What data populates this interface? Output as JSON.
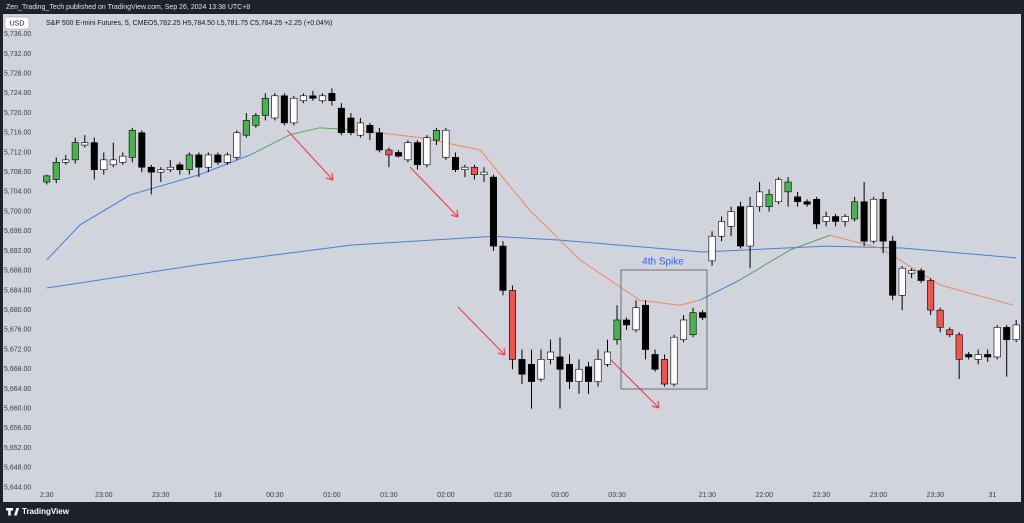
{
  "header": {
    "publisher": "Zen_Trading_Tech published on TradingView.com, Sep 26, 2024 13:38 UTC+8"
  },
  "footer": {
    "brand": "TradingView"
  },
  "chart_data": {
    "type": "candlestick",
    "currency": "USD",
    "symbol": "S&P 500 E-mini Futures, 5, CME",
    "quote": "O5,782.25 H5,784.50 L5,781.75 C5,784.25 +2.25 (+0.04%)",
    "annotations": [
      "4th Spike"
    ],
    "xlim": [
      -0.5,
      102.4
    ],
    "ylim": [
      5643.9,
      5740.1
    ],
    "xticks": [
      {
        "value": 0,
        "label": "2:30"
      },
      {
        "value": 6,
        "label": "23:00"
      },
      {
        "value": 12,
        "label": "23:30"
      },
      18,
      {
        "value": 24,
        "label": "00:30"
      },
      {
        "value": 30,
        "label": "01:00"
      },
      {
        "value": 36,
        "label": "01:30"
      },
      {
        "value": 42,
        "label": "02:00"
      },
      {
        "value": 48,
        "label": "02:30"
      },
      {
        "value": 54,
        "label": "03:00"
      },
      {
        "value": 60,
        "label": "03:30"
      },
      {
        "value": 69.5,
        "label": "21:30"
      },
      {
        "value": 75.5,
        "label": "22:00"
      },
      {
        "value": 81.5,
        "label": "22:30"
      },
      {
        "value": 87.5,
        "label": "23:00"
      },
      {
        "value": 93.5,
        "label": "23:30"
      },
      {
        "value": 99.5,
        "label": "31"
      }
    ],
    "yticks": [
      {
        "value": 5644,
        "label": "5,644.00"
      },
      {
        "value": 5648,
        "label": "5,648.00"
      },
      {
        "value": 5652,
        "label": "5,652.00"
      },
      {
        "value": 5656,
        "label": "5,656.00"
      },
      {
        "value": 5660,
        "label": "5,660.00"
      },
      {
        "value": 5664,
        "label": "5,664.00"
      },
      {
        "value": 5668,
        "label": "5,668.00"
      },
      {
        "value": 5672,
        "label": "5,672.00"
      },
      {
        "value": 5676,
        "label": "5,676.00"
      },
      {
        "value": 5680,
        "label": "5,680.00"
      },
      {
        "value": 5684,
        "label": "5,684.00"
      },
      {
        "value": 5688,
        "label": "5,688.00"
      },
      {
        "value": 5692,
        "label": "5,692.00"
      },
      {
        "value": 5696,
        "label": "5,696.00"
      },
      {
        "value": 5700,
        "label": "5,700.00"
      },
      {
        "value": 5704,
        "label": "5,704.00"
      },
      {
        "value": 5708,
        "label": "5,708.00"
      },
      {
        "value": 5712,
        "label": "5,712.00"
      },
      {
        "value": 5716,
        "label": "5,716.00"
      },
      {
        "value": 5720,
        "label": "5,720.00"
      },
      {
        "value": 5724,
        "label": "5,724.00"
      },
      {
        "value": 5728,
        "label": "5,728.00"
      },
      {
        "value": 5732,
        "label": "5,732.00"
      },
      {
        "value": 5736,
        "label": "5,736.00"
      }
    ],
    "palette": {
      "W": "#ffffff",
      "B": "#000000",
      "G": "#4caf50",
      "R": "#ef5350"
    },
    "styles": [
      "G",
      "G",
      "W",
      "G",
      "W",
      "B",
      "W",
      "W",
      "W",
      "G",
      "B",
      "B",
      "W",
      "W",
      "B",
      "G",
      "B",
      "W",
      "B",
      "W",
      "W",
      "G",
      "G",
      "G",
      "W",
      "B",
      "W",
      "W",
      "B",
      "W",
      "B",
      "B",
      "B",
      "W",
      "B",
      "B",
      "R",
      "B",
      "W",
      "B",
      "W",
      "G",
      "W",
      "B",
      "W",
      "R",
      "W",
      "B",
      "B",
      "R",
      "B",
      "B",
      "W",
      "W",
      "B",
      "B",
      "W",
      "B",
      "W",
      "W",
      "G",
      "B",
      "W",
      "B",
      "B",
      "R",
      "W",
      "W",
      "G",
      "B",
      "W",
      "W",
      "W",
      "B",
      "W",
      "W",
      "G",
      "W",
      "G",
      "B",
      "B",
      "B",
      "W",
      "B",
      "W",
      "G",
      "B",
      "W",
      "B",
      "B",
      "W",
      "W",
      "B",
      "R",
      "R",
      "R",
      "R",
      "B",
      "W",
      "B",
      "W",
      "B",
      "W"
    ],
    "open": [
      5706,
      5706.5,
      5710,
      5710.5,
      5713.5,
      5714,
      5708.5,
      5709.5,
      5710,
      5711,
      5716,
      5709,
      5708,
      5708.5,
      5709.5,
      5708.5,
      5711.5,
      5709,
      5711.5,
      5710,
      5711,
      5715.5,
      5717.5,
      5719.5,
      5719,
      5723.5,
      5718,
      5722.5,
      5723.5,
      5722.5,
      5724,
      5721,
      5719,
      5715.5,
      5717.5,
      5716,
      5712.5,
      5712,
      5710.5,
      5714,
      5709.5,
      5714.5,
      5711,
      5711,
      5708.5,
      5709,
      5707.5,
      5707,
      5693,
      5684,
      5670,
      5669,
      5666,
      5670,
      5670.5,
      5669,
      5665.5,
      5668.5,
      5665.5,
      5669,
      5674,
      5678,
      5676,
      5681,
      5671,
      5670,
      5665,
      5674,
      5675,
      5679.5,
      5690,
      5695,
      5697,
      5701,
      5693,
      5701,
      5701,
      5702,
      5704,
      5703,
      5702,
      5702.5,
      5698,
      5699,
      5698,
      5698.5,
      5702,
      5694,
      5702.5,
      5694,
      5683,
      5687.5,
      5688,
      5686,
      5680,
      5676,
      5675,
      5671,
      5670,
      5671,
      5670.5,
      5676.5,
      5674
    ],
    "high": [
      5707.5,
      5711,
      5711.5,
      5715,
      5715.5,
      5715,
      5712,
      5714,
      5712,
      5717,
      5716.5,
      5709.5,
      5709,
      5710.5,
      5710,
      5712,
      5712,
      5712,
      5712,
      5712,
      5716.5,
      5720,
      5720,
      5724,
      5724,
      5724,
      5723.5,
      5724,
      5724.5,
      5724,
      5725,
      5722,
      5720,
      5719,
      5718,
      5717,
      5713,
      5712.5,
      5714.5,
      5714.5,
      5715.5,
      5717,
      5717,
      5712,
      5709.5,
      5709.5,
      5709,
      5707.5,
      5694,
      5685,
      5672,
      5672,
      5672,
      5674,
      5674.5,
      5671,
      5670,
      5669.5,
      5672,
      5674,
      5681,
      5678.5,
      5682,
      5682,
      5672,
      5671,
      5675,
      5679,
      5680.5,
      5680,
      5696,
      5699,
      5701,
      5702,
      5703,
      5706,
      5704.5,
      5707,
      5707,
      5704,
      5702.5,
      5703,
      5700,
      5699.5,
      5699.5,
      5703,
      5706,
      5703,
      5704,
      5695,
      5689,
      5688.5,
      5688.5,
      5686.5,
      5680.5,
      5676.5,
      5675.5,
      5671.5,
      5672,
      5672,
      5677,
      5677,
      5678
    ],
    "low": [
      5705.5,
      5705.75,
      5709.5,
      5709.75,
      5713,
      5706.5,
      5707.5,
      5709,
      5709.5,
      5710,
      5708,
      5703.5,
      5706,
      5708,
      5707.5,
      5707.5,
      5707,
      5708,
      5709.5,
      5709.5,
      5710.5,
      5715,
      5717,
      5718.5,
      5718.5,
      5717.5,
      5717.5,
      5722,
      5722.5,
      5722,
      5721.5,
      5715.5,
      5715.5,
      5715,
      5714.5,
      5712,
      5709,
      5711,
      5710,
      5708.5,
      5709,
      5713.5,
      5710.5,
      5708,
      5707,
      5706.5,
      5706,
      5692,
      5683,
      5668,
      5665,
      5660,
      5665.5,
      5669,
      5660,
      5664,
      5663,
      5663,
      5664.5,
      5668.5,
      5673,
      5676,
      5675.5,
      5670,
      5667.5,
      5664.5,
      5664.5,
      5673.5,
      5674.5,
      5678,
      5689,
      5694,
      5695,
      5692.5,
      5688.5,
      5700,
      5700,
      5701.5,
      5701,
      5701,
      5701,
      5696.5,
      5697,
      5697,
      5697,
      5698,
      5693,
      5693.5,
      5691.5,
      5682,
      5680,
      5686.5,
      5685.5,
      5679,
      5675.5,
      5674.5,
      5666,
      5670,
      5669,
      5669.5,
      5670,
      5666.5,
      5673.5
    ],
    "close": [
      5707.25,
      5710,
      5710.5,
      5714,
      5714,
      5708.5,
      5710.5,
      5710.5,
      5711.25,
      5716.5,
      5709,
      5708,
      5708.5,
      5709,
      5708.5,
      5711.5,
      5709,
      5711.5,
      5710,
      5711.5,
      5716,
      5718.5,
      5719.5,
      5723,
      5723.5,
      5718,
      5723,
      5723.5,
      5723,
      5723.5,
      5722.5,
      5716,
      5716,
      5718,
      5716,
      5712.5,
      5711.5,
      5711.25,
      5714,
      5709.5,
      5715,
      5716.5,
      5716.5,
      5708.5,
      5709,
      5707.5,
      5708,
      5693,
      5684,
      5670,
      5667,
      5665.5,
      5670,
      5671.5,
      5668,
      5665.5,
      5668,
      5665.5,
      5670,
      5671.5,
      5678,
      5677,
      5680.5,
      5672,
      5668,
      5665,
      5674.5,
      5678,
      5679.5,
      5678.5,
      5695,
      5698,
      5700,
      5693,
      5701,
      5704,
      5703.5,
      5706.5,
      5706,
      5702,
      5701.5,
      5697.5,
      5699,
      5698,
      5699,
      5702,
      5694,
      5702.5,
      5694,
      5683,
      5688.5,
      5688,
      5686,
      5680,
      5676.5,
      5675,
      5670,
      5670.5,
      5671,
      5670.5,
      5676.5,
      5674,
      5677
    ],
    "lines": [
      {
        "color": "#4a7ddb",
        "x": [
          0,
          16,
          32,
          47,
          54,
          69,
          82,
          90,
          102
        ],
        "values": [
          5684.5,
          5689.2,
          5693.2,
          5695.0,
          5694.2,
          5691.8,
          5693.0,
          5692.6,
          5690.6
        ]
      },
      {
        "color": "#4a7ddb",
        "x": [
          0,
          3.5,
          8.8,
          16.1,
          21.4
        ],
        "values": [
          5690.2,
          5697.3,
          5703.4,
          5707.5,
          5711.5
        ]
      },
      {
        "color": "#5aa35e",
        "x": [
          21.4,
          25.6,
          28.7,
          32.4
        ],
        "values": [
          5711.5,
          5715.6,
          5717.0,
          5716.6
        ]
      },
      {
        "color": "#f0885a",
        "x": [
          32.4,
          39.3,
          45.6,
          50.8,
          56.1,
          62.4,
          66.6,
          68.7
        ],
        "values": [
          5716.6,
          5715.0,
          5712.5,
          5700.3,
          5690.2,
          5682.0,
          5681.0,
          5682.0
        ]
      },
      {
        "color": "#4a7ddb",
        "x": [
          68.7,
          72.9
        ],
        "values": [
          5682.0,
          5686.1
        ]
      },
      {
        "color": "#5aa35e",
        "x": [
          72.9,
          78.2,
          82.4
        ],
        "values": [
          5686.1,
          5692.2,
          5695.2
        ]
      },
      {
        "color": "#f0885a",
        "x": [
          82.4,
          87.7,
          94.0,
          101.7
        ],
        "values": [
          5695.2,
          5692.6,
          5685.1,
          5681.0
        ]
      }
    ]
  }
}
